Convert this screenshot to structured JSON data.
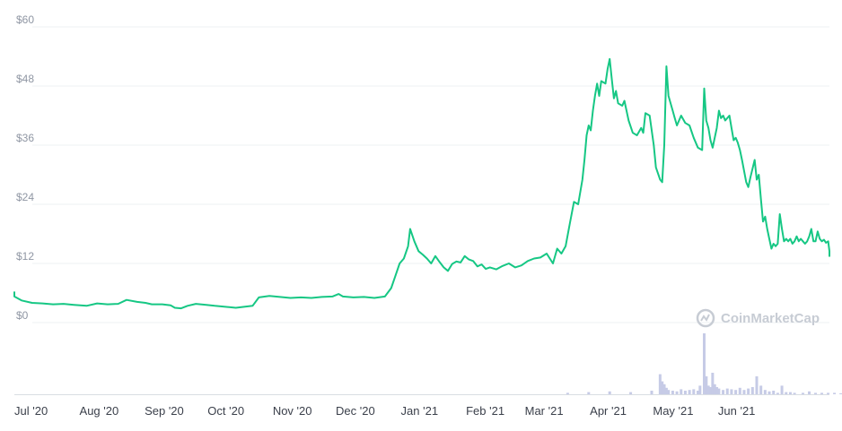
{
  "chart_data": {
    "type": "line",
    "watermark": "CoinMarketCap",
    "colors": {
      "price_line": "#16c784",
      "volume_bars": "#c6cbe6",
      "axis_text": "#8f96a3"
    },
    "y_ticks": [
      "$0",
      "$12",
      "$24",
      "$36",
      "$48",
      "$60"
    ],
    "ylim": [
      0,
      60
    ],
    "x_ticks": [
      "Jul '20",
      "Aug '20",
      "Sep '20",
      "Oct '20",
      "Nov '20",
      "Dec '20",
      "Jan '21",
      "Feb '21",
      "Mar '21",
      "Apr '21",
      "May '21",
      "Jun '21"
    ],
    "x_tick_days": [
      0,
      31,
      62,
      92,
      123,
      153,
      184,
      215,
      243,
      274,
      304,
      335
    ],
    "xlim": [
      0,
      375
    ],
    "grid": true,
    "series": [
      {
        "values": [
          [
            -8,
            6.3
          ],
          [
            -5,
            5.3
          ],
          [
            0,
            4.5
          ],
          [
            5,
            4.0
          ],
          [
            10,
            3.9
          ],
          [
            15,
            3.7
          ],
          [
            20,
            3.8
          ],
          [
            25,
            3.6
          ],
          [
            31,
            3.4
          ],
          [
            36,
            3.9
          ],
          [
            41,
            3.7
          ],
          [
            46,
            3.8
          ],
          [
            50,
            4.6
          ],
          [
            55,
            4.2
          ],
          [
            59,
            4.0
          ],
          [
            62,
            3.7
          ],
          [
            67,
            3.7
          ],
          [
            71,
            3.5
          ],
          [
            73,
            3.0
          ],
          [
            76,
            2.9
          ],
          [
            79,
            3.4
          ],
          [
            83,
            3.8
          ],
          [
            88,
            3.6
          ],
          [
            92,
            3.4
          ],
          [
            97,
            3.2
          ],
          [
            102,
            3.0
          ],
          [
            106,
            3.2
          ],
          [
            110,
            3.4
          ],
          [
            113,
            5.1
          ],
          [
            118,
            5.4
          ],
          [
            123,
            5.2
          ],
          [
            128,
            5.0
          ],
          [
            133,
            5.1
          ],
          [
            138,
            5.0
          ],
          [
            143,
            5.2
          ],
          [
            148,
            5.3
          ],
          [
            151,
            5.8
          ],
          [
            153,
            5.3
          ],
          [
            158,
            5.1
          ],
          [
            163,
            5.2
          ],
          [
            168,
            5.0
          ],
          [
            173,
            5.3
          ],
          [
            176,
            7.0
          ],
          [
            178,
            9.5
          ],
          [
            180,
            12.0
          ],
          [
            182,
            13.0
          ],
          [
            184,
            15.5
          ],
          [
            185,
            19.0
          ],
          [
            187,
            16.5
          ],
          [
            189,
            14.5
          ],
          [
            191,
            13.8
          ],
          [
            193,
            13.0
          ],
          [
            195,
            12.0
          ],
          [
            197,
            13.5
          ],
          [
            199,
            12.3
          ],
          [
            201,
            11.2
          ],
          [
            203,
            10.5
          ],
          [
            205,
            11.9
          ],
          [
            207,
            12.4
          ],
          [
            209,
            12.2
          ],
          [
            211,
            13.5
          ],
          [
            213,
            12.8
          ],
          [
            215,
            12.5
          ],
          [
            217,
            11.4
          ],
          [
            219,
            11.8
          ],
          [
            221,
            10.9
          ],
          [
            223,
            11.2
          ],
          [
            226,
            10.8
          ],
          [
            229,
            11.5
          ],
          [
            232,
            12.0
          ],
          [
            235,
            11.2
          ],
          [
            238,
            11.6
          ],
          [
            241,
            12.5
          ],
          [
            244,
            13.0
          ],
          [
            247,
            13.2
          ],
          [
            250,
            14.0
          ],
          [
            253,
            12.0
          ],
          [
            255,
            15.0
          ],
          [
            257,
            14.0
          ],
          [
            259,
            15.5
          ],
          [
            261,
            20.0
          ],
          [
            263,
            24.5
          ],
          [
            265,
            24.0
          ],
          [
            267,
            29.0
          ],
          [
            268,
            33.0
          ],
          [
            269,
            38.0
          ],
          [
            270,
            40.0
          ],
          [
            271,
            39.0
          ],
          [
            272,
            43.0
          ],
          [
            273,
            46.0
          ],
          [
            274,
            48.5
          ],
          [
            275,
            46.0
          ],
          [
            276,
            49.0
          ],
          [
            278,
            48.5
          ],
          [
            279,
            51.5
          ],
          [
            280,
            53.5
          ],
          [
            281,
            49.5
          ],
          [
            282,
            45.5
          ],
          [
            283,
            47.0
          ],
          [
            284,
            44.5
          ],
          [
            286,
            44.0
          ],
          [
            287,
            45.0
          ],
          [
            289,
            41.0
          ],
          [
            291,
            38.5
          ],
          [
            293,
            38.0
          ],
          [
            295,
            39.5
          ],
          [
            296,
            38.5
          ],
          [
            297,
            42.5
          ],
          [
            299,
            42.0
          ],
          [
            301,
            36.0
          ],
          [
            302,
            31.5
          ],
          [
            304,
            29.0
          ],
          [
            305,
            28.5
          ],
          [
            306,
            36.0
          ],
          [
            307,
            52.0
          ],
          [
            308,
            46.0
          ],
          [
            310,
            43.0
          ],
          [
            311,
            41.5
          ],
          [
            312,
            40.0
          ],
          [
            314,
            42.0
          ],
          [
            316,
            40.5
          ],
          [
            318,
            40.0
          ],
          [
            320,
            37.5
          ],
          [
            322,
            35.5
          ],
          [
            324,
            35.0
          ],
          [
            325,
            47.5
          ],
          [
            326,
            41.0
          ],
          [
            327,
            39.5
          ],
          [
            328,
            37.0
          ],
          [
            329,
            35.5
          ],
          [
            331,
            39.5
          ],
          [
            332,
            43.0
          ],
          [
            333,
            41.5
          ],
          [
            334,
            42.0
          ],
          [
            335,
            41.0
          ],
          [
            337,
            42.0
          ],
          [
            338,
            39.5
          ],
          [
            339,
            37.0
          ],
          [
            340,
            37.5
          ],
          [
            341,
            36.5
          ],
          [
            342,
            35.0
          ],
          [
            343,
            33.0
          ],
          [
            345,
            28.5
          ],
          [
            346,
            27.5
          ],
          [
            347,
            29.5
          ],
          [
            349,
            33.0
          ],
          [
            350,
            29.0
          ],
          [
            351,
            30.0
          ],
          [
            352,
            25.0
          ],
          [
            353,
            20.5
          ],
          [
            354,
            21.5
          ],
          [
            355,
            19.0
          ],
          [
            356,
            17.0
          ],
          [
            357,
            15.0
          ],
          [
            358,
            16.0
          ],
          [
            359,
            15.5
          ],
          [
            360,
            16.0
          ],
          [
            361,
            22.0
          ],
          [
            362,
            19.0
          ],
          [
            363,
            16.5
          ],
          [
            364,
            17.0
          ],
          [
            365,
            16.5
          ],
          [
            366,
            17.0
          ],
          [
            367,
            16.0
          ],
          [
            368,
            16.5
          ],
          [
            369,
            17.5
          ],
          [
            370,
            16.5
          ],
          [
            371,
            17.0
          ],
          [
            372,
            16.5
          ],
          [
            373,
            16.0
          ],
          [
            374,
            16.5
          ],
          [
            375,
            17.5
          ],
          [
            376,
            19.0
          ],
          [
            377,
            16.5
          ],
          [
            378,
            16.5
          ],
          [
            379,
            18.5
          ],
          [
            380,
            17.0
          ],
          [
            381,
            16.5
          ],
          [
            382,
            16.8
          ],
          [
            383,
            16.2
          ],
          [
            384,
            16.5
          ],
          [
            385,
            14.5
          ],
          [
            386,
            13.5
          ],
          [
            387,
            14.5
          ],
          [
            388,
            14.0
          ],
          [
            389,
            13.6
          ],
          [
            390,
            13.8
          ]
        ]
      }
    ],
    "volume": [
      [
        260,
        0.02
      ],
      [
        270,
        0.03
      ],
      [
        280,
        0.04
      ],
      [
        290,
        0.03
      ],
      [
        300,
        0.05
      ],
      [
        304,
        0.28
      ],
      [
        305,
        0.18
      ],
      [
        306,
        0.14
      ],
      [
        307,
        0.09
      ],
      [
        308,
        0.06
      ],
      [
        310,
        0.05
      ],
      [
        312,
        0.04
      ],
      [
        314,
        0.07
      ],
      [
        316,
        0.05
      ],
      [
        318,
        0.06
      ],
      [
        320,
        0.07
      ],
      [
        322,
        0.05
      ],
      [
        323,
        0.12
      ],
      [
        325,
        0.85
      ],
      [
        326,
        0.25
      ],
      [
        327,
        0.12
      ],
      [
        328,
        0.1
      ],
      [
        329,
        0.3
      ],
      [
        330,
        0.14
      ],
      [
        331,
        0.1
      ],
      [
        332,
        0.08
      ],
      [
        334,
        0.06
      ],
      [
        336,
        0.08
      ],
      [
        338,
        0.07
      ],
      [
        340,
        0.06
      ],
      [
        342,
        0.09
      ],
      [
        344,
        0.06
      ],
      [
        346,
        0.08
      ],
      [
        348,
        0.1
      ],
      [
        350,
        0.25
      ],
      [
        352,
        0.12
      ],
      [
        354,
        0.06
      ],
      [
        356,
        0.04
      ],
      [
        358,
        0.05
      ],
      [
        360,
        0.02
      ],
      [
        362,
        0.12
      ],
      [
        364,
        0.03
      ],
      [
        366,
        0.03
      ],
      [
        368,
        0.02
      ],
      [
        372,
        0.02
      ],
      [
        375,
        0.04
      ],
      [
        378,
        0.02
      ],
      [
        381,
        0.02
      ],
      [
        384,
        0.02
      ],
      [
        387,
        0.02
      ],
      [
        390,
        0.01
      ]
    ]
  }
}
